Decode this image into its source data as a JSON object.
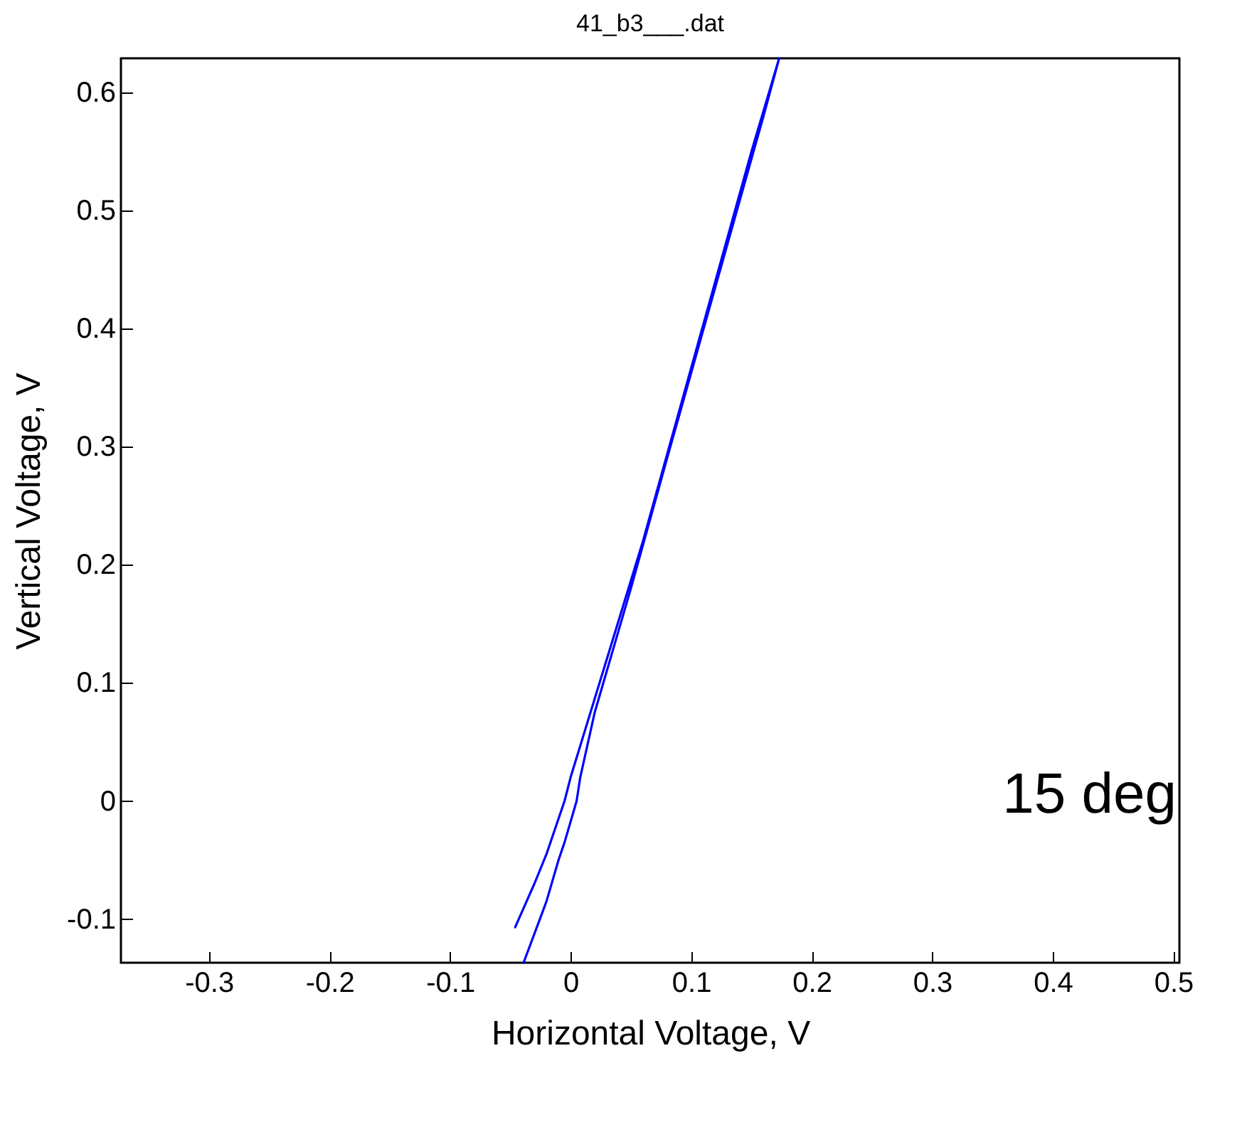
{
  "chart_data": {
    "type": "line",
    "title": "41_b3___.dat",
    "xlabel": "Horizontal Voltage, V",
    "ylabel": "Vertical Voltage, V",
    "annotations": [
      "15 deg"
    ],
    "xlim": [
      -0.373,
      0.505
    ],
    "ylim": [
      -0.137,
      0.629
    ],
    "xticks": [
      -0.3,
      -0.2,
      -0.1,
      0,
      0.1,
      0.2,
      0.3,
      0.4,
      0.5
    ],
    "yticks": [
      -0.1,
      0,
      0.1,
      0.2,
      0.3,
      0.4,
      0.5,
      0.6
    ],
    "grid": false,
    "marker": "none",
    "line_style": "solid",
    "series": [
      {
        "color": "#0000ff",
        "x": [
          -0.046,
          -0.03,
          -0.02,
          -0.015,
          -0.005,
          0.0,
          0.03,
          0.06,
          0.09,
          0.12,
          0.15,
          0.173,
          0.16,
          0.12,
          0.08,
          0.05,
          0.02,
          0.008,
          0.005,
          -0.005,
          -0.01,
          -0.02,
          -0.039
        ],
        "values": [
          -0.107,
          -0.07,
          -0.045,
          -0.03,
          0.0,
          0.02,
          0.12,
          0.22,
          0.33,
          0.44,
          0.55,
          0.629,
          0.58,
          0.435,
          0.29,
          0.18,
          0.075,
          0.02,
          0.0,
          -0.035,
          -0.05,
          -0.085,
          -0.137
        ]
      }
    ]
  }
}
